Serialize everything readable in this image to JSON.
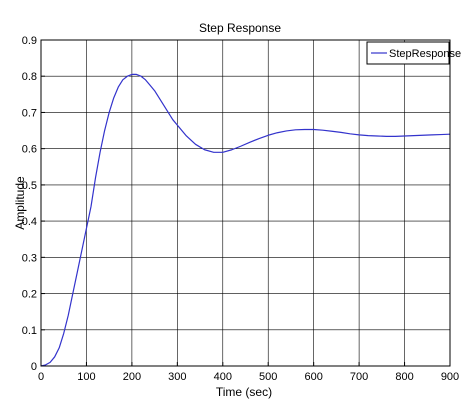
{
  "chart_data": {
    "type": "line",
    "title": "Step Response",
    "xlabel": "Time (sec)",
    "ylabel": "Amplitude",
    "xlim": [
      0,
      900
    ],
    "ylim": [
      0,
      0.9
    ],
    "xticks": [
      0,
      100,
      200,
      300,
      400,
      500,
      600,
      700,
      800,
      900
    ],
    "yticks": [
      0,
      0.1,
      0.2,
      0.3,
      0.4,
      0.5,
      0.6,
      0.7,
      0.8,
      0.9
    ],
    "xtick_labels": [
      "0",
      "100",
      "200",
      "300",
      "400",
      "500",
      "600",
      "700",
      "800",
      "900"
    ],
    "ytick_labels": [
      "0",
      "0.1",
      "0.2",
      "0.3",
      "0.4",
      "0.5",
      "0.6",
      "0.7",
      "0.8",
      "0.9"
    ],
    "grid": true,
    "legend_position": "top-right",
    "line_color": "#3333cc",
    "series": [
      {
        "name": "StepResponse",
        "x": [
          0,
          10,
          20,
          30,
          40,
          50,
          60,
          70,
          80,
          90,
          100,
          110,
          120,
          130,
          140,
          150,
          160,
          170,
          180,
          190,
          200,
          210,
          220,
          230,
          240,
          250,
          260,
          270,
          280,
          290,
          300,
          320,
          340,
          360,
          380,
          400,
          420,
          440,
          460,
          480,
          500,
          520,
          540,
          560,
          580,
          600,
          620,
          640,
          660,
          680,
          700,
          720,
          740,
          760,
          780,
          800,
          820,
          840,
          860,
          880,
          900
        ],
        "y": [
          0.0,
          0.003,
          0.01,
          0.025,
          0.05,
          0.09,
          0.14,
          0.2,
          0.26,
          0.32,
          0.38,
          0.44,
          0.52,
          0.59,
          0.65,
          0.7,
          0.74,
          0.77,
          0.79,
          0.8,
          0.805,
          0.805,
          0.8,
          0.79,
          0.775,
          0.76,
          0.74,
          0.72,
          0.7,
          0.68,
          0.665,
          0.635,
          0.612,
          0.597,
          0.59,
          0.59,
          0.597,
          0.607,
          0.618,
          0.628,
          0.637,
          0.644,
          0.649,
          0.652,
          0.653,
          0.653,
          0.651,
          0.648,
          0.645,
          0.641,
          0.638,
          0.636,
          0.635,
          0.634,
          0.634,
          0.635,
          0.636,
          0.637,
          0.638,
          0.639,
          0.64
        ]
      }
    ]
  }
}
